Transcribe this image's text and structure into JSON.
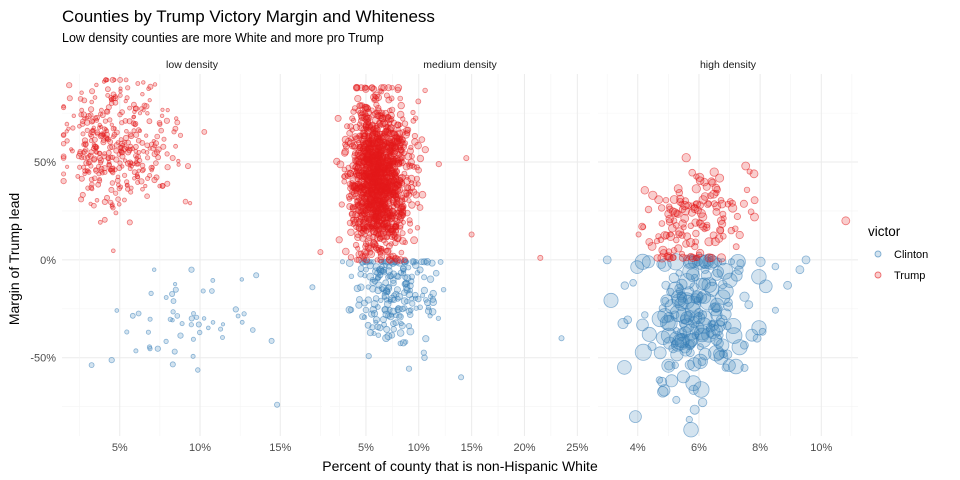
{
  "colors": {
    "clinton": "#377eb8",
    "trump": "#e41a1c"
  },
  "chart_data": {
    "type": "scatter",
    "title": "Counties by Trump Victory Margin and Whiteness",
    "subtitle": "Low density counties are more White and more pro Trump",
    "xlabel": "Percent of county that is non-Hispanic White",
    "ylabel": "Margin of Trump lead",
    "ylim": [
      -0.9,
      0.95
    ],
    "y_ticks": [
      {
        "v": -0.5,
        "label": "-50%"
      },
      {
        "v": 0,
        "label": "0%"
      },
      {
        "v": 0.5,
        "label": "50%"
      }
    ],
    "grid": true,
    "legend": {
      "title": "victor",
      "position": "right",
      "entries": [
        {
          "name": "Clinton",
          "color": "#377eb8"
        },
        {
          "name": "Trump",
          "color": "#e41a1c"
        }
      ]
    },
    "panels": [
      {
        "name": "low density",
        "xlim": [
          0.014,
          0.176
        ],
        "x_ticks": [
          {
            "v": 0.05,
            "label": "5%"
          },
          {
            "v": 0.1,
            "label": "10%"
          },
          {
            "v": 0.15,
            "label": "15%"
          }
        ],
        "trump_cloud": {
          "n": 380,
          "x_center": 0.04,
          "x_spread": 0.022,
          "y_center": 0.58,
          "y_spread": 0.16,
          "x_min": 0.015,
          "x_max": 0.11,
          "y_min": 0.03,
          "y_max": 0.92,
          "radius": 2.2
        },
        "clinton_cloud": {
          "n": 55,
          "x_center": 0.075,
          "x_spread": 0.035,
          "y_center": -0.28,
          "y_spread": 0.16,
          "x_min": 0.02,
          "x_max": 0.15,
          "y_min": -0.75,
          "y_max": -0.05,
          "radius": 2.2
        },
        "outliers": [
          {
            "x": 0.17,
            "y": -0.14,
            "victor": "Clinton"
          },
          {
            "x": 0.148,
            "y": -0.74,
            "victor": "Clinton"
          },
          {
            "x": 0.175,
            "y": 0.04,
            "victor": "Trump"
          }
        ]
      },
      {
        "name": "medium density",
        "xlim": [
          0.016,
          0.262
        ],
        "x_ticks": [
          {
            "v": 0.05,
            "label": "5%"
          },
          {
            "v": 0.1,
            "label": "10%"
          },
          {
            "v": 0.15,
            "label": "15%"
          },
          {
            "v": 0.2,
            "label": "20%"
          },
          {
            "v": 0.25,
            "label": "25%"
          }
        ],
        "trump_cloud": {
          "n": 1450,
          "x_center": 0.055,
          "x_spread": 0.017,
          "y_center": 0.42,
          "y_spread": 0.18,
          "x_min": 0.02,
          "x_max": 0.14,
          "y_min": 0.0,
          "y_max": 0.88,
          "radius": 2.8
        },
        "clinton_cloud": {
          "n": 210,
          "x_center": 0.065,
          "x_spread": 0.025,
          "y_center": -0.16,
          "y_spread": 0.14,
          "x_min": 0.02,
          "x_max": 0.14,
          "y_min": -0.72,
          "y_max": -0.01,
          "radius": 2.8
        },
        "outliers": [
          {
            "x": 0.215,
            "y": 0.01,
            "victor": "Trump"
          },
          {
            "x": 0.145,
            "y": 0.52,
            "victor": "Trump"
          },
          {
            "x": 0.15,
            "y": 0.13,
            "victor": "Trump"
          },
          {
            "x": 0.235,
            "y": -0.4,
            "victor": "Clinton"
          },
          {
            "x": 0.14,
            "y": -0.6,
            "victor": "Clinton"
          }
        ]
      },
      {
        "name": "high density",
        "xlim": [
          0.027,
          0.112
        ],
        "x_ticks": [
          {
            "v": 0.04,
            "label": "4%"
          },
          {
            "v": 0.06,
            "label": "6%"
          },
          {
            "v": 0.08,
            "label": "8%"
          },
          {
            "v": 0.1,
            "label": "10%"
          }
        ],
        "trump_cloud": {
          "n": 150,
          "x_center": 0.054,
          "x_spread": 0.01,
          "y_center": 0.2,
          "y_spread": 0.13,
          "x_min": 0.034,
          "x_max": 0.08,
          "y_min": 0.01,
          "y_max": 0.6,
          "radius": 3.4
        },
        "clinton_cloud": {
          "n": 200,
          "x_center": 0.053,
          "x_spread": 0.012,
          "y_center": -0.3,
          "y_spread": 0.2,
          "x_min": 0.03,
          "x_max": 0.085,
          "y_min": -0.88,
          "y_max": -0.01,
          "radius": 4.0
        },
        "outliers": [
          {
            "x": 0.108,
            "y": 0.2,
            "victor": "Trump"
          },
          {
            "x": 0.078,
            "y": 0.44,
            "victor": "Trump"
          },
          {
            "x": 0.095,
            "y": 0.0,
            "victor": "Clinton"
          },
          {
            "x": 0.093,
            "y": -0.05,
            "victor": "Clinton"
          },
          {
            "x": 0.089,
            "y": -0.13,
            "victor": "Clinton"
          },
          {
            "x": 0.079,
            "y": -0.4,
            "victor": "Clinton"
          },
          {
            "x": 0.03,
            "y": 0.0,
            "victor": "Clinton"
          },
          {
            "x": 0.068,
            "y": -0.48,
            "victor": "Clinton"
          },
          {
            "x": 0.061,
            "y": -0.52,
            "victor": "Clinton"
          }
        ]
      }
    ]
  }
}
